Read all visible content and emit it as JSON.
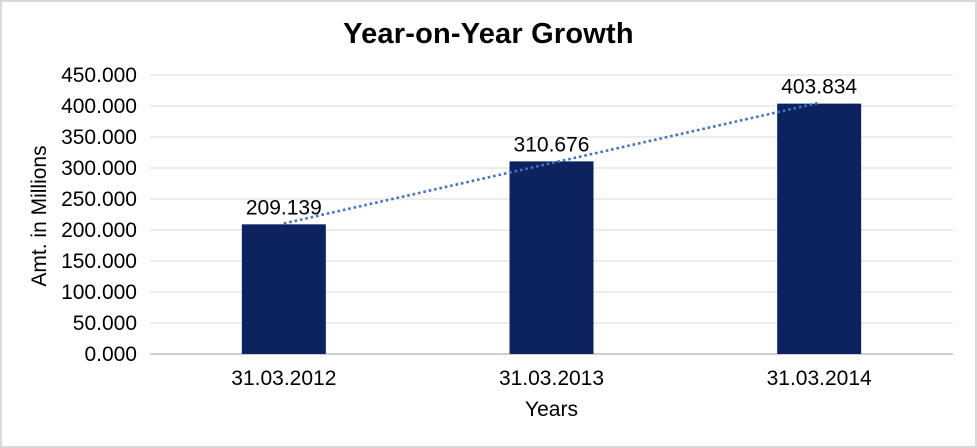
{
  "chart_data": {
    "type": "bar",
    "title": "Year-on-Year Growth",
    "xlabel": "Years",
    "ylabel": "Amt. in Millions",
    "categories": [
      "31.03.2012",
      "31.03.2013",
      "31.03.2014"
    ],
    "values": [
      209.139,
      310.676,
      403.834
    ],
    "data_labels": [
      "209.139",
      "310.676",
      "403.834"
    ],
    "y_tick_labels": [
      "0.000",
      "50.000",
      "100.000",
      "150.000",
      "200.000",
      "250.000",
      "300.000",
      "350.000",
      "400.000",
      "450.000"
    ],
    "ylim": [
      0,
      450
    ],
    "y_tick_step": 50,
    "grid": true,
    "legend": "none",
    "trendline": {
      "type": "linear",
      "style": "dotted"
    },
    "colors": {
      "bar": "#0C235F",
      "trendline": "#4472C4",
      "gridline": "#D9D9D9",
      "axis_line": "#BFBFBF",
      "text": "#000000",
      "border": "#D9D9D9",
      "background": "#FFFFFF"
    }
  }
}
